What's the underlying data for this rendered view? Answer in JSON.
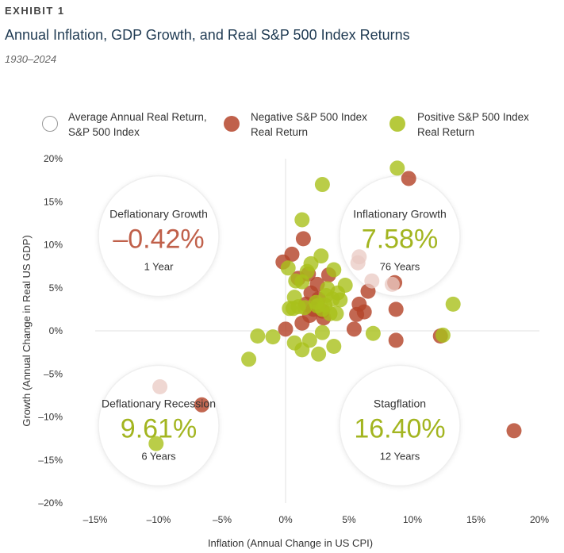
{
  "header": {
    "exhibit": "EXHIBIT 1",
    "title": "Annual Inflation, GDP Growth, and Real S&P 500 Index Returns",
    "subtitle": "1930–2024"
  },
  "legend": {
    "average": {
      "line1": "Average Annual Real Return,",
      "line2": "S&P 500 Index"
    },
    "negative": {
      "line1": "Negative S&P 500 Index",
      "line2": "Real Return"
    },
    "positive": {
      "line1": "Positive S&P 500 Index",
      "line2": "Real Return"
    }
  },
  "colors": {
    "negative": "#b5452b",
    "positive": "#a9c01a",
    "negative_text": "#c0604a",
    "positive_text": "#a3b520"
  },
  "chart_data": {
    "type": "scatter",
    "xlabel": "Inflation (Annual Change in US CPI)",
    "ylabel": "Growth (Annual Change in Real US GDP)",
    "xlim": [
      -15,
      20
    ],
    "ylim": [
      -20,
      20
    ],
    "x_ticks": [
      "–15%",
      "–10%",
      "–5%",
      "0%",
      "5%",
      "10%",
      "15%",
      "20%"
    ],
    "y_ticks": [
      "20%",
      "15%",
      "10%",
      "5%",
      "0%",
      "–5%",
      "–10%",
      "–15%",
      "–20%"
    ],
    "quadrants": [
      {
        "id": "deflationary-growth",
        "name": "Deflationary Growth",
        "value": "–0.42%",
        "years": "1 Year",
        "sign": "negative",
        "cx": -10,
        "cy": 11
      },
      {
        "id": "inflationary-growth",
        "name": "Inflationary Growth",
        "value": "7.58%",
        "years": "76 Years",
        "sign": "positive",
        "cx": 9,
        "cy": 11
      },
      {
        "id": "deflationary-recession",
        "name": "Deflationary Recession",
        "value": "9.61%",
        "years": "6 Years",
        "sign": "positive",
        "cx": -10,
        "cy": -11
      },
      {
        "id": "stagflation",
        "name": "Stagflation",
        "value": "16.40%",
        "years": "12 Years",
        "sign": "positive",
        "cx": 9,
        "cy": -11
      }
    ],
    "series": [
      {
        "name": "Negative S&P 500 Index Real Return",
        "sign": "negative",
        "points": [
          [
            9.7,
            17.7
          ],
          [
            1.4,
            10.7
          ],
          [
            0.5,
            8.9
          ],
          [
            -0.2,
            8.0
          ],
          [
            1.0,
            6.1
          ],
          [
            1.8,
            6.6
          ],
          [
            2.5,
            5.4
          ],
          [
            3.4,
            6.5
          ],
          [
            2.0,
            4.4
          ],
          [
            2.6,
            3.7
          ],
          [
            1.6,
            3.1
          ],
          [
            2.2,
            2.5
          ],
          [
            2.9,
            2.3
          ],
          [
            1.9,
            1.8
          ],
          [
            1.3,
            0.9
          ],
          [
            3.0,
            1.5
          ],
          [
            5.8,
            3.1
          ],
          [
            6.2,
            2.2
          ],
          [
            6.5,
            4.6
          ],
          [
            5.6,
            1.9
          ],
          [
            8.7,
            2.5
          ],
          [
            5.4,
            0.2
          ],
          [
            8.7,
            -1.1
          ],
          [
            12.2,
            -0.6
          ],
          [
            8.6,
            5.6
          ],
          [
            0.0,
            0.2
          ],
          [
            -6.6,
            -8.6
          ],
          [
            18.0,
            -11.6
          ]
        ]
      },
      {
        "name": "Positive S&P 500 Index Real Return",
        "sign": "positive",
        "points": [
          [
            8.8,
            18.9
          ],
          [
            2.9,
            17.0
          ],
          [
            1.3,
            12.9
          ],
          [
            2.0,
            7.8
          ],
          [
            3.8,
            7.1
          ],
          [
            2.8,
            8.7
          ],
          [
            1.7,
            6.9
          ],
          [
            1.3,
            5.7
          ],
          [
            0.8,
            5.8
          ],
          [
            0.7,
            3.9
          ],
          [
            1.0,
            2.8
          ],
          [
            3.3,
            4.9
          ],
          [
            4.1,
            4.4
          ],
          [
            3.7,
            3.7
          ],
          [
            4.7,
            5.3
          ],
          [
            4.3,
            3.6
          ],
          [
            3.2,
            4.1
          ],
          [
            2.4,
            3.3
          ],
          [
            1.5,
            2.7
          ],
          [
            2.5,
            2.9
          ],
          [
            2.9,
            2.5
          ],
          [
            3.1,
            3.0
          ],
          [
            3.5,
            2.0
          ],
          [
            0.3,
            2.6
          ],
          [
            4.0,
            2.0
          ],
          [
            0.6,
            2.6
          ],
          [
            6.9,
            -0.3
          ],
          [
            12.4,
            -0.5
          ],
          [
            13.2,
            3.1
          ],
          [
            3.8,
            -1.8
          ],
          [
            2.6,
            -2.7
          ],
          [
            1.9,
            -1.1
          ],
          [
            1.3,
            -2.2
          ],
          [
            0.7,
            -1.4
          ],
          [
            2.9,
            -0.2
          ],
          [
            -1.0,
            -0.7
          ],
          [
            -2.2,
            -0.6
          ],
          [
            -2.9,
            -3.3
          ],
          [
            0.2,
            7.3
          ],
          [
            -10.2,
            -13.1
          ]
        ]
      },
      {
        "name": "Faint",
        "sign": "faint",
        "points": [
          [
            5.8,
            8.6
          ],
          [
            5.7,
            7.9
          ],
          [
            6.8,
            5.8
          ],
          [
            8.4,
            5.4
          ],
          [
            -9.9,
            -6.5
          ]
        ]
      }
    ]
  }
}
